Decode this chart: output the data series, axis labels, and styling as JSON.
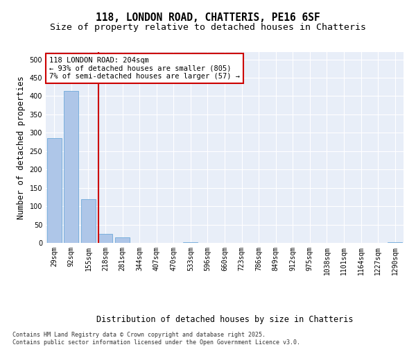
{
  "title_line1": "118, LONDON ROAD, CHATTERIS, PE16 6SF",
  "title_line2": "Size of property relative to detached houses in Chatteris",
  "xlabel": "Distribution of detached houses by size in Chatteris",
  "ylabel": "Number of detached properties",
  "categories": [
    "29sqm",
    "92sqm",
    "155sqm",
    "218sqm",
    "281sqm",
    "344sqm",
    "407sqm",
    "470sqm",
    "533sqm",
    "596sqm",
    "660sqm",
    "723sqm",
    "786sqm",
    "849sqm",
    "912sqm",
    "975sqm",
    "1038sqm",
    "1101sqm",
    "1164sqm",
    "1227sqm",
    "1290sqm"
  ],
  "values": [
    285,
    415,
    120,
    25,
    15,
    0,
    0,
    0,
    2,
    0,
    0,
    0,
    0,
    0,
    0,
    0,
    0,
    0,
    0,
    0,
    2
  ],
  "bar_color": "#aec6e8",
  "bar_edge_color": "#5a9fd4",
  "vline_color": "#cc0000",
  "annotation_text": "118 LONDON ROAD: 204sqm\n← 93% of detached houses are smaller (805)\n7% of semi-detached houses are larger (57) →",
  "annotation_box_color": "#cc0000",
  "annotation_text_color": "#000000",
  "ylim": [
    0,
    520
  ],
  "yticks": [
    0,
    50,
    100,
    150,
    200,
    250,
    300,
    350,
    400,
    450,
    500
  ],
  "background_color": "#e8eef8",
  "footer_text": "Contains HM Land Registry data © Crown copyright and database right 2025.\nContains public sector information licensed under the Open Government Licence v3.0.",
  "title_fontsize": 10.5,
  "subtitle_fontsize": 9.5,
  "axis_label_fontsize": 8.5,
  "tick_fontsize": 7,
  "annotation_fontsize": 7.5,
  "footer_fontsize": 6.0
}
